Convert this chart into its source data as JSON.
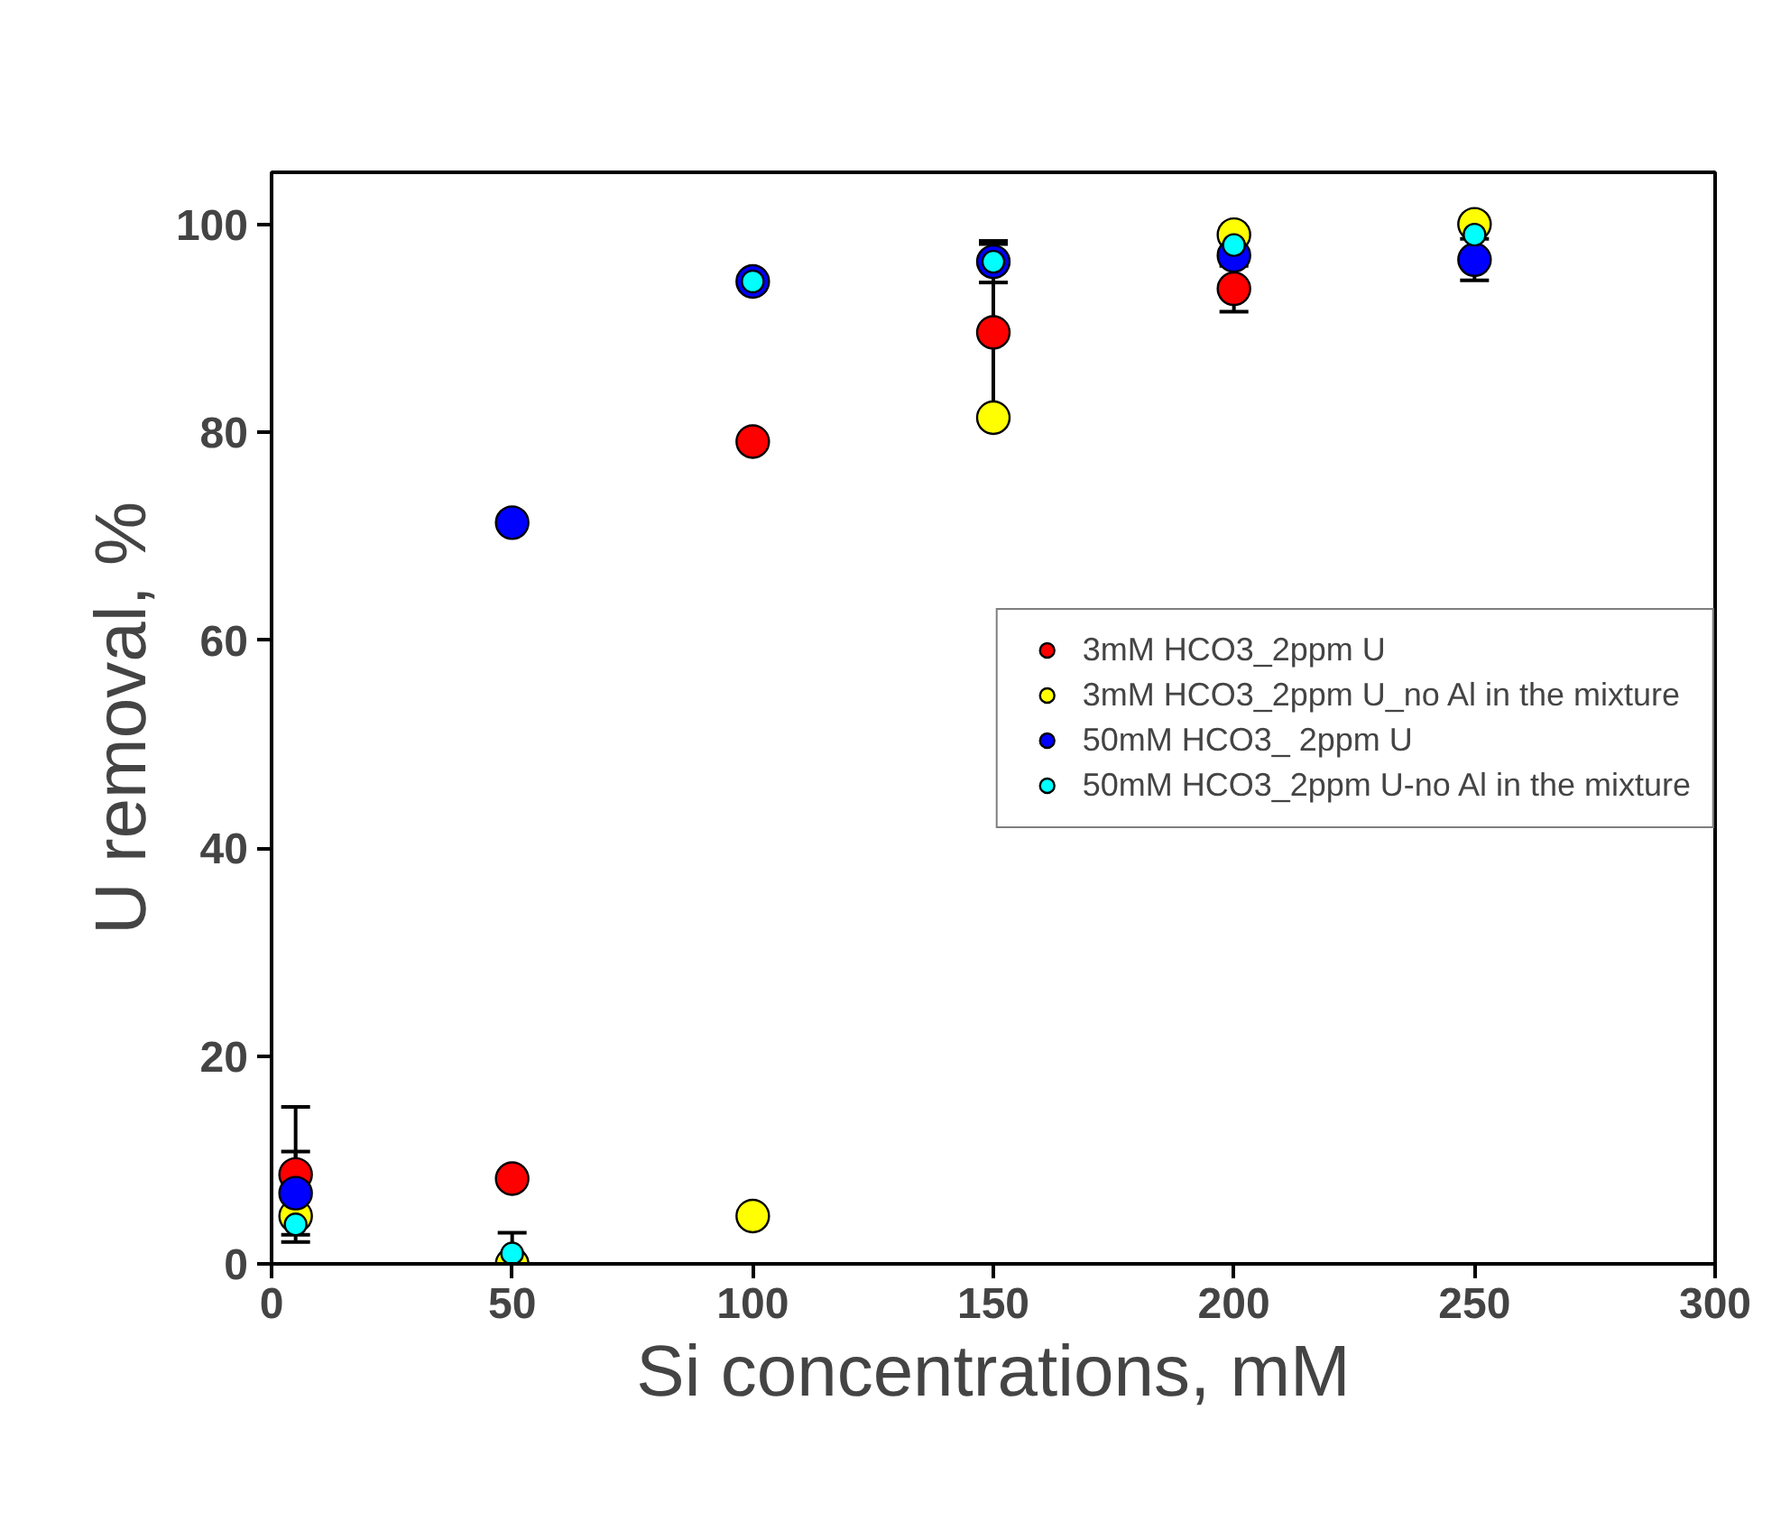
{
  "chart_data": {
    "type": "scatter",
    "xlabel": "Si concentrations, mM",
    "ylabel": "U removal, %",
    "x": [
      5,
      50,
      100,
      150,
      200,
      250
    ],
    "series": [
      {
        "name": "3mM HCO3_2ppm U",
        "color": "#ff0000",
        "values": [
          8.6,
          8.2,
          79.1,
          89.6,
          93.8,
          null
        ],
        "errors": [
          6.5,
          null,
          null,
          8.5,
          2.2,
          null
        ]
      },
      {
        "name": "3mM HCO3_2ppm U_no Al in the mixture",
        "color": "#ffff00",
        "values": [
          4.6,
          0,
          4.6,
          81.4,
          99,
          100
        ]
      },
      {
        "name": "50mM HCO3_ 2ppm U",
        "color": "#0000ff",
        "values": [
          6.8,
          71.3,
          94.5,
          96.4,
          97,
          96.6
        ],
        "errors": [
          4,
          null,
          null,
          2,
          null,
          2
        ]
      },
      {
        "name": "50mM HCO3_2ppm U-no Al in the mixture",
        "color": "#00ffff",
        "values": [
          3.8,
          1,
          94.5,
          96.4,
          98,
          99
        ],
        "errors": [
          null,
          2,
          null,
          null,
          null,
          null
        ]
      }
    ],
    "xlim": [
      0,
      300
    ],
    "ylim": [
      0,
      105
    ],
    "xticks": [
      0,
      50,
      100,
      150,
      200,
      250,
      300
    ],
    "yticks": [
      0,
      20,
      40,
      60,
      80,
      100
    ],
    "grid": false,
    "legend": "right",
    "marker": "circle"
  }
}
